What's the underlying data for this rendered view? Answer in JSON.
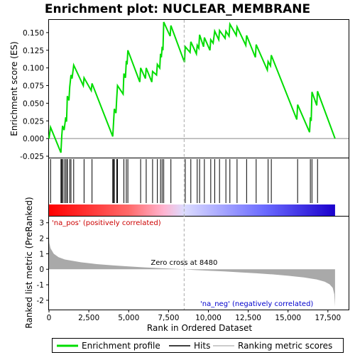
{
  "chart_data": {
    "type": "line",
    "title": "Enrichment plot: NUCLEAR_MEMBRANE",
    "x_label": "Rank in Ordered Dataset",
    "x_range": [
      0,
      18800
    ],
    "x_ticks": [
      0,
      2500,
      5000,
      7500,
      10000,
      12500,
      15000,
      17500
    ],
    "n_genes": 17950,
    "es_panel": {
      "y_label": "Enrichment score (ES)",
      "y_range": [
        -0.027,
        0.168
      ],
      "y_ticks": [
        -0.025,
        0.0,
        0.025,
        0.05,
        0.075,
        0.1,
        0.125,
        0.15
      ],
      "y_tick_labels": [
        "-0.025",
        "0.000",
        "0.025",
        "0.050",
        "0.075",
        "0.100",
        "0.125",
        "0.150"
      ],
      "series_name": "Enrichment profile",
      "color": "#00dd00",
      "points": [
        [
          0,
          0.0
        ],
        [
          100,
          0.016
        ],
        [
          750,
          -0.02
        ],
        [
          800,
          0.004
        ],
        [
          850,
          0.018
        ],
        [
          950,
          0.012
        ],
        [
          1050,
          0.03
        ],
        [
          1100,
          0.024
        ],
        [
          1130,
          0.045
        ],
        [
          1150,
          0.06
        ],
        [
          1250,
          0.054
        ],
        [
          1300,
          0.073
        ],
        [
          1380,
          0.09
        ],
        [
          1450,
          0.085
        ],
        [
          1550,
          0.104
        ],
        [
          2150,
          0.075
        ],
        [
          2200,
          0.086
        ],
        [
          2650,
          0.068
        ],
        [
          2700,
          0.078
        ],
        [
          4000,
          0.003
        ],
        [
          4050,
          0.022
        ],
        [
          4100,
          0.042
        ],
        [
          4200,
          0.036
        ],
        [
          4250,
          0.057
        ],
        [
          4300,
          0.075
        ],
        [
          4650,
          0.063
        ],
        [
          4700,
          0.092
        ],
        [
          4800,
          0.086
        ],
        [
          4850,
          0.11
        ],
        [
          4900,
          0.105
        ],
        [
          4950,
          0.125
        ],
        [
          5700,
          0.08
        ],
        [
          5750,
          0.1
        ],
        [
          6050,
          0.085
        ],
        [
          6100,
          0.1
        ],
        [
          6450,
          0.08
        ],
        [
          6500,
          0.095
        ],
        [
          6750,
          0.09
        ],
        [
          6800,
          0.105
        ],
        [
          6950,
          0.1
        ],
        [
          7000,
          0.12
        ],
        [
          7050,
          0.115
        ],
        [
          7100,
          0.13
        ],
        [
          7150,
          0.125
        ],
        [
          7200,
          0.165
        ],
        [
          7600,
          0.145
        ],
        [
          7650,
          0.16
        ],
        [
          8500,
          0.108
        ],
        [
          8550,
          0.13
        ],
        [
          8850,
          0.122
        ],
        [
          8900,
          0.137
        ],
        [
          9250,
          0.12
        ],
        [
          9300,
          0.132
        ],
        [
          9400,
          0.128
        ],
        [
          9450,
          0.147
        ],
        [
          9700,
          0.13
        ],
        [
          9750,
          0.143
        ],
        [
          10100,
          0.125
        ],
        [
          10150,
          0.14
        ],
        [
          10300,
          0.135
        ],
        [
          10400,
          0.152
        ],
        [
          10650,
          0.14
        ],
        [
          10700,
          0.153
        ],
        [
          11050,
          0.142
        ],
        [
          11100,
          0.152
        ],
        [
          11300,
          0.145
        ],
        [
          11350,
          0.162
        ],
        [
          11750,
          0.146
        ],
        [
          11800,
          0.158
        ],
        [
          12350,
          0.132
        ],
        [
          12400,
          0.146
        ],
        [
          12950,
          0.115
        ],
        [
          13000,
          0.133
        ],
        [
          13700,
          0.097
        ],
        [
          13750,
          0.109
        ],
        [
          13900,
          0.103
        ],
        [
          13950,
          0.118
        ],
        [
          15550,
          0.027
        ],
        [
          15600,
          0.048
        ],
        [
          16350,
          0.009
        ],
        [
          16400,
          0.03
        ],
        [
          16450,
          0.025
        ],
        [
          16500,
          0.066
        ],
        [
          16800,
          0.047
        ],
        [
          16850,
          0.067
        ],
        [
          17950,
          0.0
        ]
      ],
      "zero_line": 0.0
    },
    "hits": {
      "series_name": "Hits",
      "ranks": [
        100,
        750,
        800,
        850,
        950,
        1050,
        1130,
        1150,
        1300,
        1380,
        1550,
        2200,
        2700,
        4000,
        4050,
        4100,
        4250,
        4300,
        4700,
        4850,
        4950,
        5750,
        6100,
        6500,
        6800,
        7000,
        7100,
        7200,
        7650,
        8550,
        8900,
        9300,
        9450,
        9750,
        10150,
        10400,
        10700,
        11100,
        11350,
        11800,
        12400,
        13000,
        13750,
        13950,
        15600,
        16400,
        16500,
        16850
      ]
    },
    "color_bar": {
      "stops": [
        "#ff0000",
        "#ff6a6a",
        "#ffb4d0",
        "#dcdcff",
        "#6b6bff",
        "#1a00cc"
      ],
      "stop_ranks": [
        0,
        5000,
        7200,
        8480,
        13500,
        17950
      ]
    },
    "metric_panel": {
      "y_label": "Ranked list metric (PreRanked)",
      "y_range": [
        -2.6,
        3.4
      ],
      "y_ticks": [
        -2,
        -1,
        0,
        1,
        2,
        3
      ],
      "series_name": "Ranking metric scores",
      "color": "#a9a9a9",
      "curve": [
        [
          0,
          2.1
        ],
        [
          20,
          1.7
        ],
        [
          100,
          1.35
        ],
        [
          300,
          1.0
        ],
        [
          600,
          0.78
        ],
        [
          1000,
          0.63
        ],
        [
          2000,
          0.45
        ],
        [
          3000,
          0.33
        ],
        [
          4000,
          0.25
        ],
        [
          5000,
          0.18
        ],
        [
          6000,
          0.12
        ],
        [
          7000,
          0.07
        ],
        [
          8000,
          0.02
        ],
        [
          8480,
          0.0
        ],
        [
          9000,
          -0.04
        ],
        [
          10000,
          -0.09
        ],
        [
          11000,
          -0.14
        ],
        [
          12000,
          -0.2
        ],
        [
          13000,
          -0.26
        ],
        [
          14000,
          -0.33
        ],
        [
          15000,
          -0.42
        ],
        [
          16000,
          -0.53
        ],
        [
          16800,
          -0.66
        ],
        [
          17300,
          -0.8
        ],
        [
          17600,
          -0.97
        ],
        [
          17800,
          -1.2
        ],
        [
          17900,
          -1.6
        ],
        [
          17950,
          -2.4
        ]
      ],
      "zero_cross_label": "Zero cross at 8480",
      "zero_cross_rank": 8480,
      "pos_label": "'na_pos' (positively correlated)",
      "pos_color": "#cc0000",
      "neg_label": "'na_neg' (negatively correlated)",
      "neg_color": "#0000cc"
    },
    "legend": [
      "Enrichment profile",
      "Hits",
      "Ranking metric scores"
    ]
  }
}
